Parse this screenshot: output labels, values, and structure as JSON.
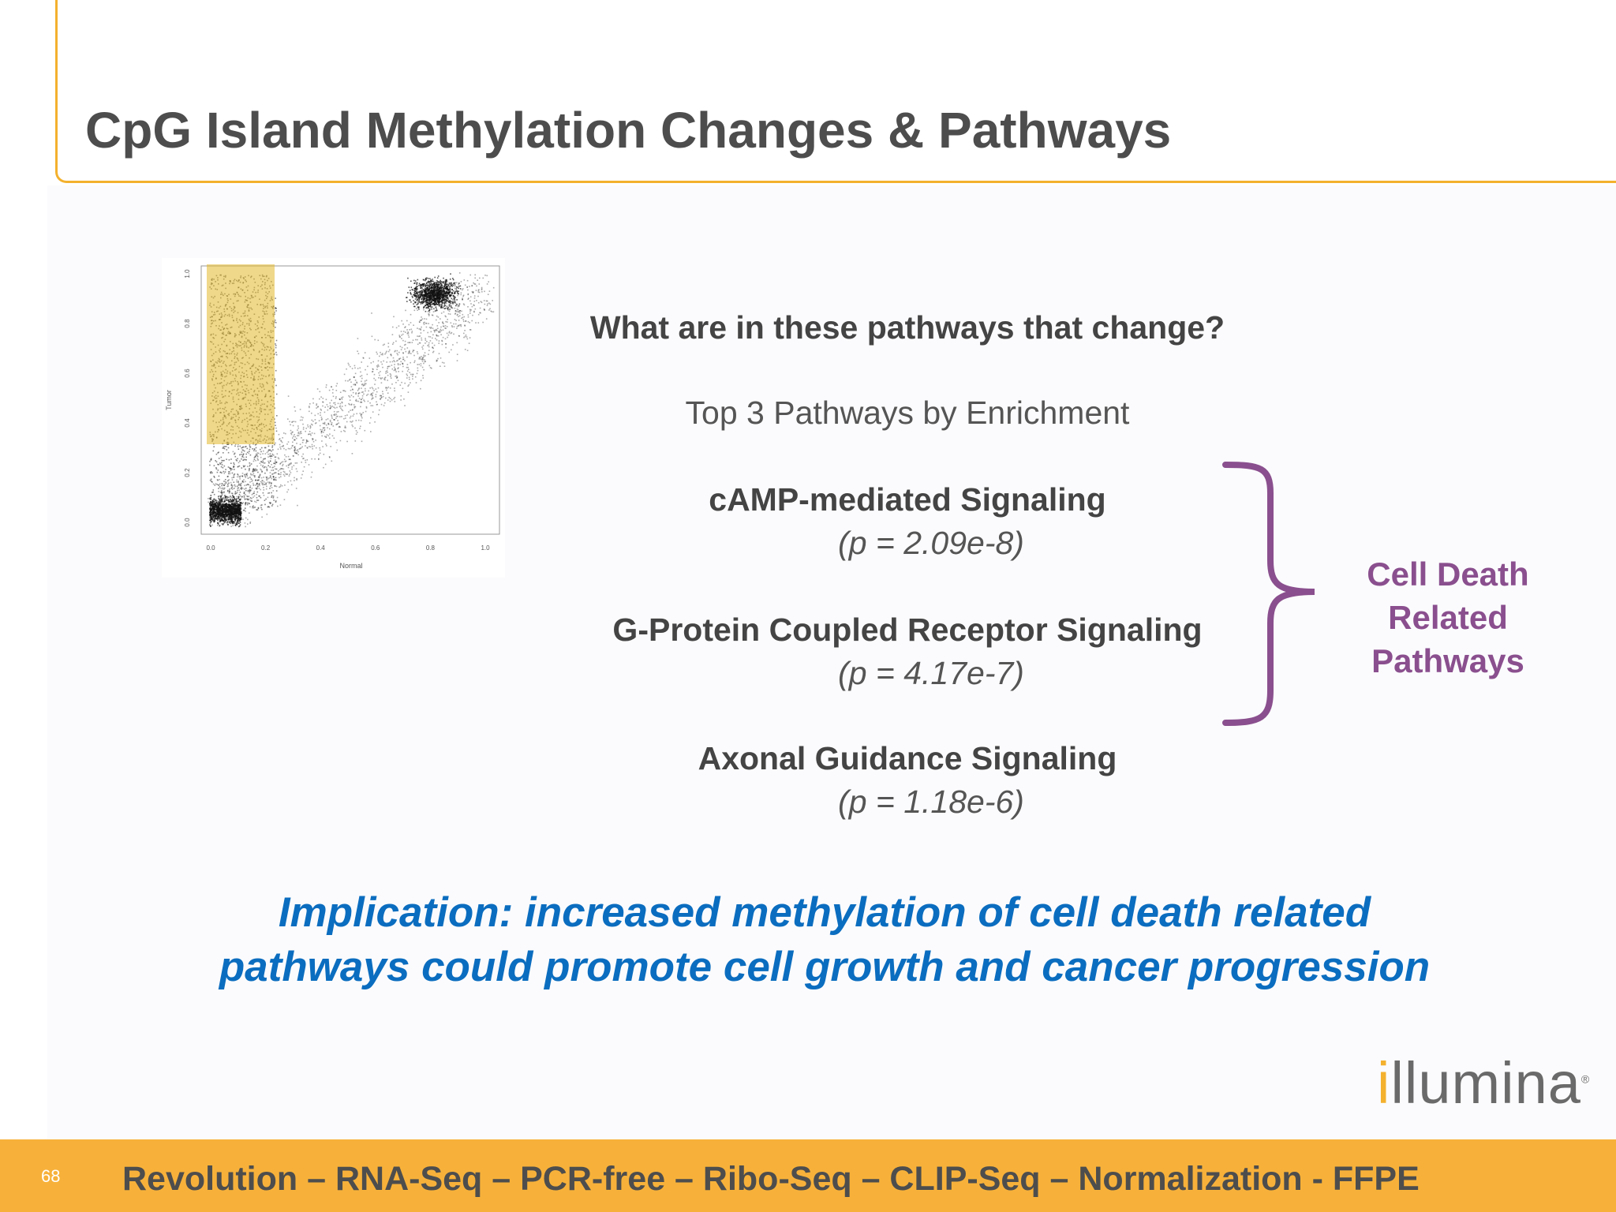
{
  "slide": {
    "title": "CpG Island Methylation Changes & Pathways",
    "question": "What are in these pathways that change?",
    "subtitle": "Top 3 Pathways by Enrichment",
    "pathways": [
      {
        "name": "cAMP-mediated Signaling",
        "pvalue": "(p = 2.09e-8)"
      },
      {
        "name": "G-Protein Coupled Receptor Signaling",
        "pvalue": "(p = 4.17e-7)"
      },
      {
        "name": "Axonal Guidance Signaling",
        "pvalue": "(p = 1.18e-6)"
      }
    ],
    "bracket_label": [
      "Cell Death",
      "Related",
      "Pathways"
    ],
    "implication": [
      "Implication:  increased methylation of cell death related",
      "pathways could  promote cell growth and cancer progression"
    ],
    "page_number": "68",
    "footer": "Revolution – RNA-Seq – PCR-free – Ribo-Seq – CLIP-Seq – Normalization - FFPE",
    "logo": {
      "first": "i",
      "rest": "llumina",
      "mark": "®"
    }
  },
  "colors": {
    "accent": "#f4b12e",
    "bracket": "#8a4f8e",
    "implication": "#0b6dbf",
    "highlight": "#e3b82a"
  },
  "scatter": {
    "xlabel": "Normal",
    "ylabel": "Tumor",
    "x_ticks": [
      "0.0",
      "0.2",
      "0.4",
      "0.6",
      "0.8",
      "1.0"
    ],
    "y_ticks": [
      "0.0",
      "0.2",
      "0.4",
      "0.6",
      "0.8",
      "1.0"
    ],
    "highlight_region": {
      "x": [
        0,
        0.2
      ],
      "y": [
        0.3,
        1.0
      ]
    }
  }
}
